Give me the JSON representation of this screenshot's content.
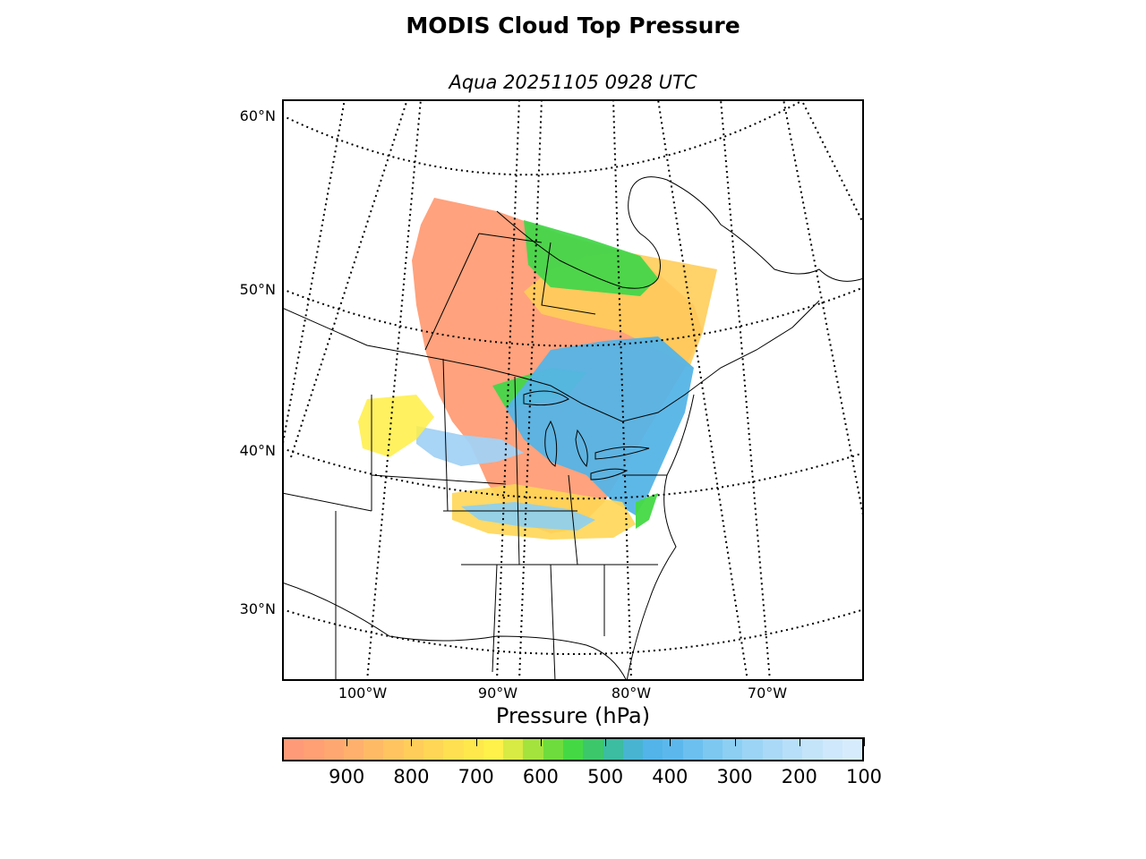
{
  "title": "MODIS Cloud Top Pressure",
  "subtitle": "Aqua 20251105 0928 UTC",
  "map": {
    "lat_labels": [
      "60°N",
      "50°N",
      "40°N",
      "30°N"
    ],
    "lon_labels": [
      "100°W",
      "90°W",
      "80°W",
      "70°W"
    ],
    "colors": {
      "low": "#ff9977",
      "mid_low": "#ffcc55",
      "mid": "#ffee44",
      "green": "#44dd44",
      "blue": "#55b4e6",
      "light_blue": "#a6d2f5"
    }
  },
  "colorbar": {
    "label": "Pressure (hPa)",
    "ticks": [
      "900",
      "800",
      "700",
      "600",
      "500",
      "400",
      "300",
      "200",
      "100"
    ],
    "range": [
      1000,
      100
    ],
    "colors": [
      "#ff9a78",
      "#ff9f74",
      "#ffa770",
      "#ffb06c",
      "#ffba66",
      "#ffc460",
      "#ffcd5a",
      "#ffd655",
      "#ffe050",
      "#ffe84c",
      "#fff04a",
      "#d8ea44",
      "#a4e23e",
      "#6edc3c",
      "#44d944",
      "#3cc86a",
      "#3cbca0",
      "#48b4d2",
      "#52b4e8",
      "#5cb8ec",
      "#6cc0ef",
      "#7cc8f1",
      "#8ccff3",
      "#9cd4f5",
      "#aad9f7",
      "#b8dff9",
      "#c4e4fa",
      "#cfe8fb",
      "#d6ecfc"
    ]
  }
}
